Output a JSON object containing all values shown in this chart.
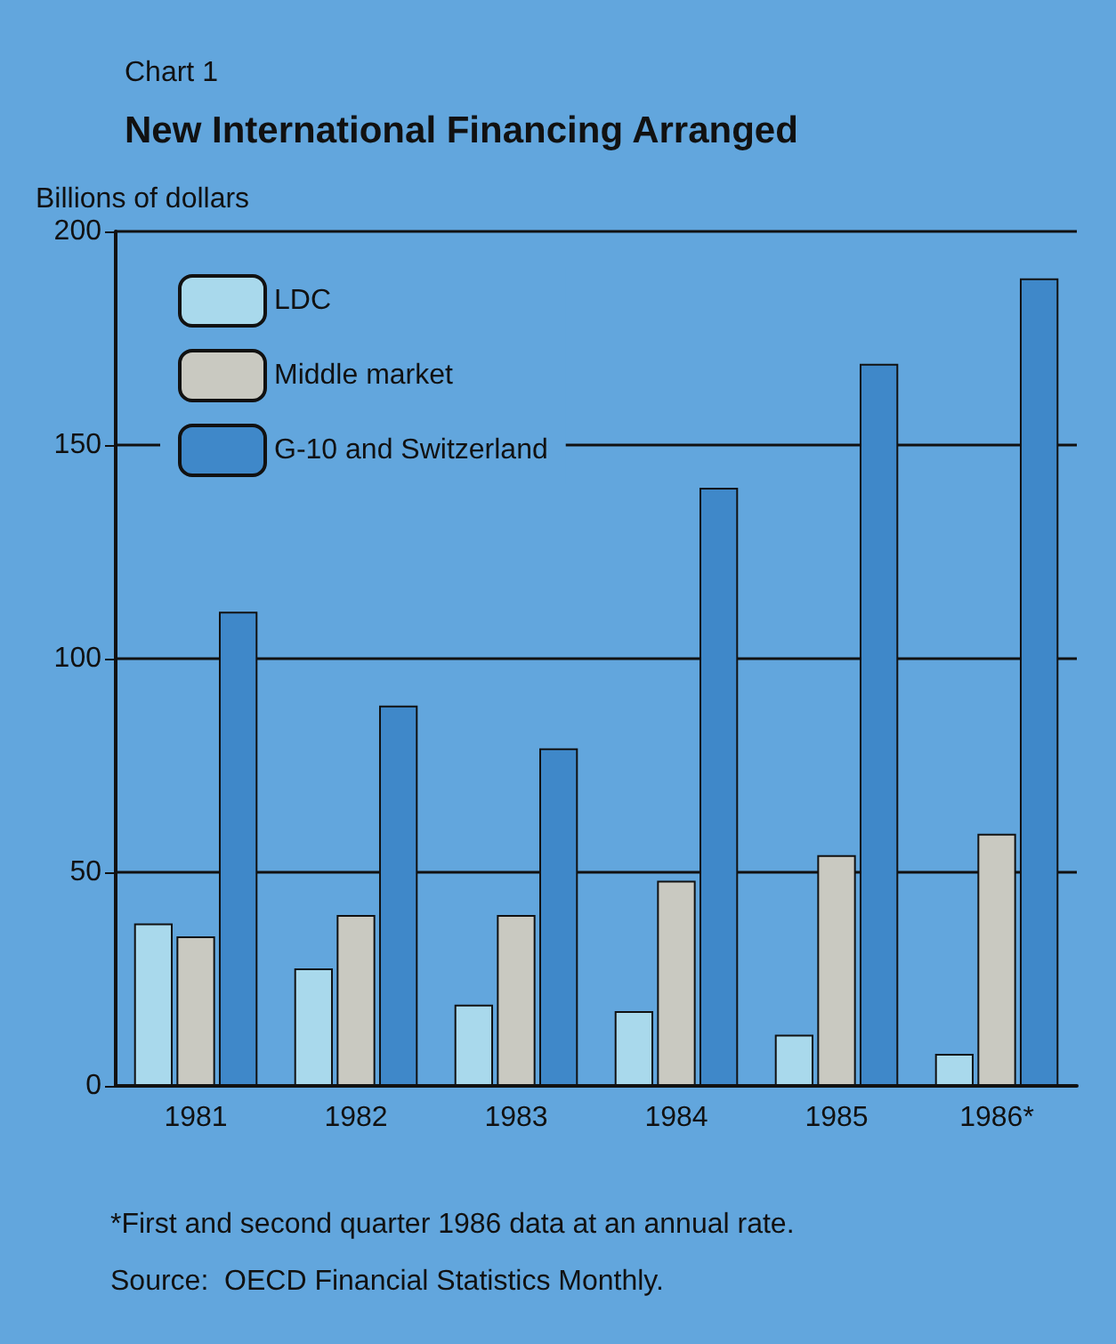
{
  "chart_data": {
    "type": "bar",
    "subtitle": "Chart 1",
    "title": "New International Financing Arranged",
    "ylabel": "Billions of dollars",
    "categories": [
      "1981",
      "1982",
      "1983",
      "1984",
      "1985",
      "1986*"
    ],
    "series": [
      {
        "name": "LDC",
        "color": "#a9d9ec",
        "values": [
          38,
          27.5,
          19,
          17.5,
          12,
          7.5
        ]
      },
      {
        "name": "Middle market",
        "color": "#c9c9c1",
        "values": [
          35,
          40,
          40,
          48,
          54,
          59
        ]
      },
      {
        "name": "G-10 and Switzerland",
        "color": "#3f88c9",
        "values": [
          111,
          89,
          79,
          140,
          169,
          189
        ]
      }
    ],
    "ylim": [
      0,
      200
    ],
    "yticks": [
      0,
      50,
      100,
      150,
      200
    ],
    "grid": "y",
    "legend": "top left",
    "annotations": [
      "*First and second quarter 1986 data at an annual rate.",
      "Source:  OECD Financial Statistics Monthly."
    ]
  }
}
